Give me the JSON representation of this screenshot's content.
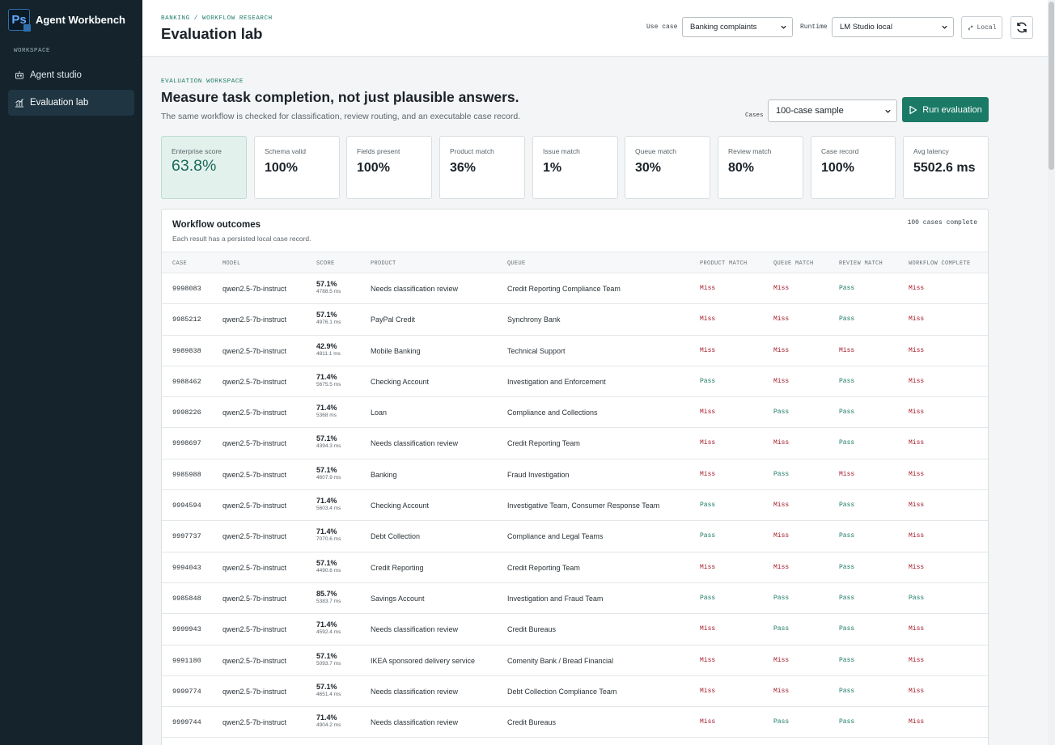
{
  "app": {
    "brand_logo": "Ps",
    "brand_name": "Agent Workbench"
  },
  "sidebar": {
    "section": "WORKSPACE",
    "items": [
      {
        "label": "Agent studio",
        "icon": "robot-icon",
        "active": false
      },
      {
        "label": "Evaluation lab",
        "icon": "chart-icon",
        "active": true
      }
    ]
  },
  "header": {
    "breadcrumb": "BANKING / WORKFLOW RESEARCH",
    "title": "Evaluation lab",
    "use_case_label": "Use case",
    "use_case_value": "Banking complaints",
    "runtime_label": "Runtime",
    "runtime_value": "LM Studio local",
    "local_label": "Local"
  },
  "evaluation": {
    "eyebrow": "EVALUATION WORKSPACE",
    "headline": "Measure task completion, not just plausible answers.",
    "subline": "The same workflow is checked for classification, review routing, and an executable case record.",
    "cases_label": "Cases",
    "cases_value": "100-case sample",
    "run_label": "Run evaluation"
  },
  "metrics": [
    {
      "label": "Enterprise score",
      "value": "63.8%"
    },
    {
      "label": "Schema valid",
      "value": "100%"
    },
    {
      "label": "Fields present",
      "value": "100%"
    },
    {
      "label": "Product match",
      "value": "36%"
    },
    {
      "label": "Issue match",
      "value": "1%"
    },
    {
      "label": "Queue match",
      "value": "30%"
    },
    {
      "label": "Review match",
      "value": "80%"
    },
    {
      "label": "Case record",
      "value": "100%"
    },
    {
      "label": "Avg latency",
      "value": "5502.6 ms"
    }
  ],
  "outcomes": {
    "title": "Workflow outcomes",
    "subtitle": "Each result has a persisted local case record.",
    "status": "100 cases complete",
    "columns": [
      "CASE",
      "MODEL",
      "SCORE",
      "PRODUCT",
      "QUEUE",
      "PRODUCT MATCH",
      "QUEUE MATCH",
      "REVIEW MATCH",
      "WORKFLOW COMPLETE"
    ],
    "rows": [
      {
        "case": "9998083",
        "model": "qwen2.5-7b-instruct",
        "score": "57.1%",
        "latency": "4788.5 ms",
        "product": "Needs classification review",
        "queue": "Credit Reporting Compliance Team",
        "product_match": "Miss",
        "queue_match": "Miss",
        "review_match": "Pass",
        "workflow_complete": "Miss"
      },
      {
        "case": "9985212",
        "model": "qwen2.5-7b-instruct",
        "score": "57.1%",
        "latency": "4976.1 ms",
        "product": "PayPal Credit",
        "queue": "Synchrony Bank",
        "product_match": "Miss",
        "queue_match": "Miss",
        "review_match": "Pass",
        "workflow_complete": "Miss"
      },
      {
        "case": "9989838",
        "model": "qwen2.5-7b-instruct",
        "score": "42.9%",
        "latency": "4811.1 ms",
        "product": "Mobile Banking",
        "queue": "Technical Support",
        "product_match": "Miss",
        "queue_match": "Miss",
        "review_match": "Miss",
        "workflow_complete": "Miss"
      },
      {
        "case": "9988462",
        "model": "qwen2.5-7b-instruct",
        "score": "71.4%",
        "latency": "5675.5 ms",
        "product": "Checking Account",
        "queue": "Investigation and Enforcement",
        "product_match": "Pass",
        "queue_match": "Miss",
        "review_match": "Pass",
        "workflow_complete": "Miss"
      },
      {
        "case": "9998226",
        "model": "qwen2.5-7b-instruct",
        "score": "71.4%",
        "latency": "5368 ms",
        "product": "Loan",
        "queue": "Compliance and Collections",
        "product_match": "Miss",
        "queue_match": "Pass",
        "review_match": "Pass",
        "workflow_complete": "Miss"
      },
      {
        "case": "9998697",
        "model": "qwen2.5-7b-instruct",
        "score": "57.1%",
        "latency": "4394.3 ms",
        "product": "Needs classification review",
        "queue": "Credit Reporting Team",
        "product_match": "Miss",
        "queue_match": "Miss",
        "review_match": "Pass",
        "workflow_complete": "Miss"
      },
      {
        "case": "9985988",
        "model": "qwen2.5-7b-instruct",
        "score": "57.1%",
        "latency": "4607.9 ms",
        "product": "Banking",
        "queue": "Fraud Investigation",
        "product_match": "Miss",
        "queue_match": "Pass",
        "review_match": "Miss",
        "workflow_complete": "Miss"
      },
      {
        "case": "9994594",
        "model": "qwen2.5-7b-instruct",
        "score": "71.4%",
        "latency": "5603.4 ms",
        "product": "Checking Account",
        "queue": "Investigative Team, Consumer Response Team",
        "product_match": "Pass",
        "queue_match": "Miss",
        "review_match": "Pass",
        "workflow_complete": "Miss"
      },
      {
        "case": "9997737",
        "model": "qwen2.5-7b-instruct",
        "score": "71.4%",
        "latency": "7070.6 ms",
        "product": "Debt Collection",
        "queue": "Compliance and Legal Teams",
        "product_match": "Pass",
        "queue_match": "Miss",
        "review_match": "Pass",
        "workflow_complete": "Miss"
      },
      {
        "case": "9994043",
        "model": "qwen2.5-7b-instruct",
        "score": "57.1%",
        "latency": "4490.6 ms",
        "product": "Credit Reporting",
        "queue": "Credit Reporting Team",
        "product_match": "Miss",
        "queue_match": "Miss",
        "review_match": "Pass",
        "workflow_complete": "Miss"
      },
      {
        "case": "9985848",
        "model": "qwen2.5-7b-instruct",
        "score": "85.7%",
        "latency": "5383.7 ms",
        "product": "Savings Account",
        "queue": "Investigation and Fraud Team",
        "product_match": "Pass",
        "queue_match": "Pass",
        "review_match": "Pass",
        "workflow_complete": "Pass"
      },
      {
        "case": "9999943",
        "model": "qwen2.5-7b-instruct",
        "score": "71.4%",
        "latency": "4592.4 ms",
        "product": "Needs classification review",
        "queue": "Credit Bureaus",
        "product_match": "Miss",
        "queue_match": "Pass",
        "review_match": "Pass",
        "workflow_complete": "Miss"
      },
      {
        "case": "9991180",
        "model": "qwen2.5-7b-instruct",
        "score": "57.1%",
        "latency": "5093.7 ms",
        "product": "IKEA sponsored delivery service",
        "queue": "Comenity Bank / Bread Financial",
        "product_match": "Miss",
        "queue_match": "Miss",
        "review_match": "Pass",
        "workflow_complete": "Miss"
      },
      {
        "case": "9999774",
        "model": "qwen2.5-7b-instruct",
        "score": "57.1%",
        "latency": "4651.4 ms",
        "product": "Needs classification review",
        "queue": "Debt Collection Compliance Team",
        "product_match": "Miss",
        "queue_match": "Miss",
        "review_match": "Pass",
        "workflow_complete": "Miss"
      },
      {
        "case": "9999744",
        "model": "qwen2.5-7b-instruct",
        "score": "71.4%",
        "latency": "4904.2 ms",
        "product": "Needs classification review",
        "queue": "Credit Bureaus",
        "product_match": "Miss",
        "queue_match": "Pass",
        "review_match": "Pass",
        "workflow_complete": "Miss"
      }
    ]
  },
  "colors": {
    "sidebar": "#14232c",
    "accent": "#1b7a66",
    "pass": "#1a7a66",
    "miss": "#a31b2b"
  }
}
